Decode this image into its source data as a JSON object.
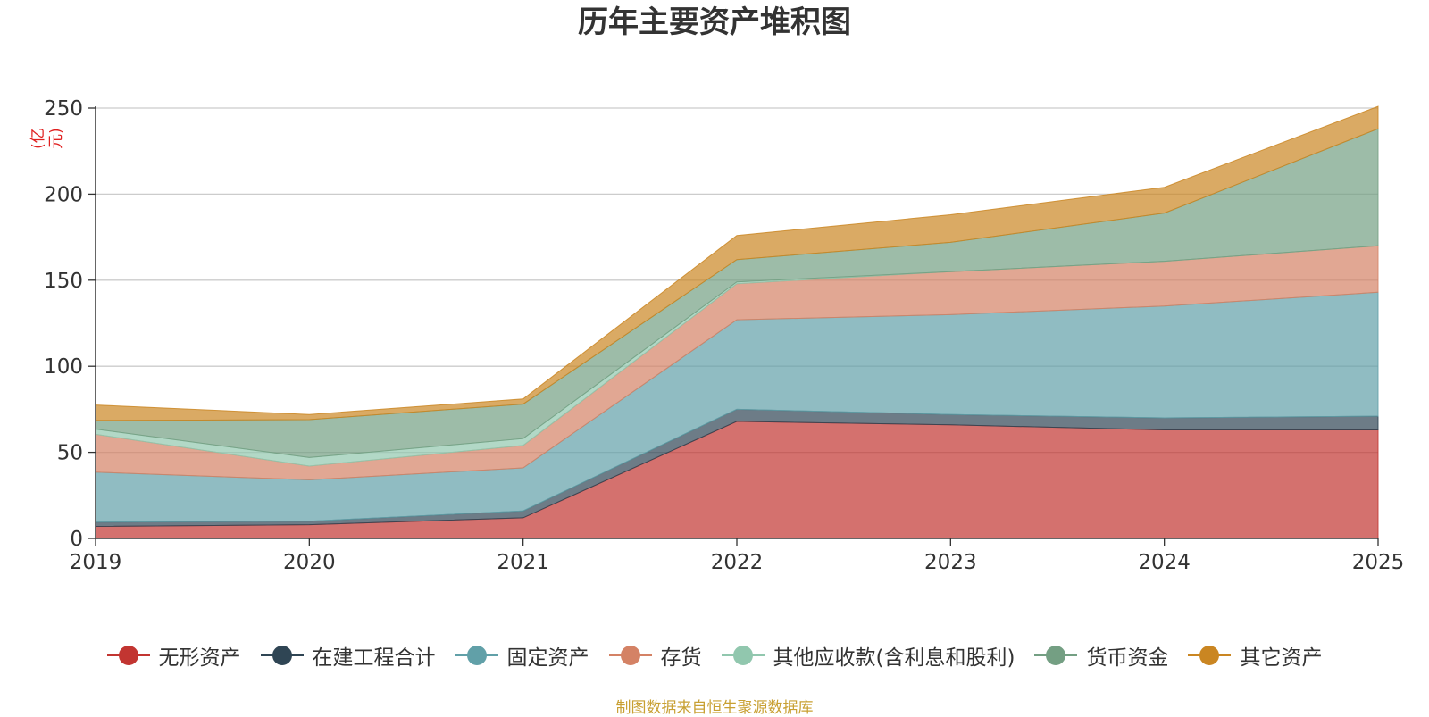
{
  "chart_data": {
    "type": "area",
    "stacked": true,
    "title": "历年主要资产堆积图",
    "ylabel": "(亿元)",
    "xlabel": "",
    "categories": [
      "2019",
      "2020",
      "2021",
      "2022",
      "2023",
      "2024",
      "2025"
    ],
    "ylim": [
      0,
      250
    ],
    "yticks": [
      0,
      50,
      100,
      150,
      200,
      250
    ],
    "grid": true,
    "legend_position": "bottom",
    "series": [
      {
        "name": "无形资产",
        "color": "#c23531",
        "values": [
          7,
          8,
          12,
          68,
          66,
          63,
          63
        ]
      },
      {
        "name": "在建工程合计",
        "color": "#2f4554",
        "values": [
          2.5,
          2,
          4,
          7,
          6,
          7,
          8
        ]
      },
      {
        "name": "固定资产",
        "color": "#61a0a8",
        "values": [
          29,
          24,
          25,
          52,
          58,
          65,
          72
        ]
      },
      {
        "name": "存货",
        "color": "#d48265",
        "values": [
          22,
          8,
          13,
          21,
          25,
          26,
          27
        ]
      },
      {
        "name": "其他应收款(含利息和股利)",
        "color": "#91c7ae",
        "values": [
          3,
          5,
          4,
          1,
          0,
          0,
          0
        ]
      },
      {
        "name": "货币资金",
        "color": "#749f83",
        "values": [
          5,
          22,
          20,
          13,
          17,
          28,
          68
        ]
      },
      {
        "name": "其它资产",
        "color": "#ca8622",
        "values": [
          9,
          3,
          3,
          14,
          16,
          15,
          13
        ]
      }
    ]
  },
  "source_text": "制图数据来自恒生聚源数据库"
}
